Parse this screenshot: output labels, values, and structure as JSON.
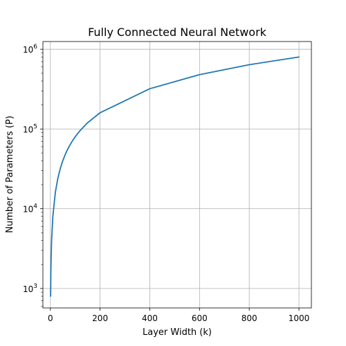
{
  "chart_data": {
    "type": "line",
    "title": "Fully Connected Neural Network",
    "xlabel": "Layer Width (k)",
    "ylabel": "Number of Parameters (P)",
    "x_scale": "linear",
    "y_scale": "log",
    "xlim": [
      -30,
      1050
    ],
    "ylim": [
      570,
      1250000
    ],
    "grid": true,
    "legend": "none",
    "x_ticks": [
      0,
      200,
      400,
      600,
      800,
      1000
    ],
    "x_tick_labels": [
      "0",
      "200",
      "400",
      "600",
      "800",
      "1000"
    ],
    "y_ticks": [
      1000,
      10000,
      100000,
      1000000
    ],
    "y_tick_labels": [
      {
        "base": "10",
        "exp": "3"
      },
      {
        "base": "10",
        "exp": "4"
      },
      {
        "base": "10",
        "exp": "5"
      },
      {
        "base": "10",
        "exp": "6"
      }
    ],
    "series": [
      {
        "color": "#1f77b4",
        "x": [
          1,
          2,
          3,
          5,
          10,
          20,
          30,
          40,
          50,
          60,
          70,
          80,
          90,
          100,
          120,
          150,
          200,
          400,
          600,
          800,
          1000
        ],
        "y": [
          800,
          1600,
          2400,
          4000,
          8000,
          16000,
          24000,
          32000,
          40000,
          48000,
          56000,
          64000,
          72000,
          80000,
          96000,
          120000,
          160000,
          320000,
          480000,
          640000,
          800000
        ]
      }
    ]
  }
}
